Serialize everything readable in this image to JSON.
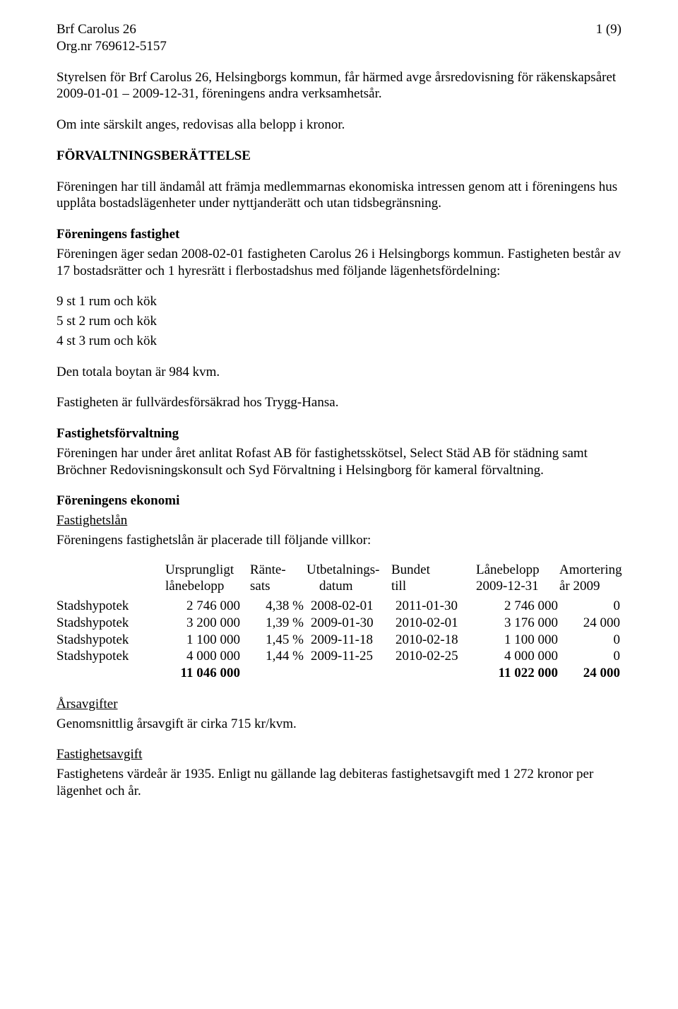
{
  "header": {
    "org_name": "Brf Carolus 26",
    "org_no_label": "Org.nr 769612-5157",
    "page_no": "1 (9)"
  },
  "intro": {
    "p1": "Styrelsen för Brf Carolus 26, Helsingborgs kommun, får härmed avge årsredovisning för räkenskapsåret 2009-01-01 – 2009-12-31, föreningens andra verksamhetsår.",
    "p2": "Om inte särskilt anges, redovisas alla belopp i kronor."
  },
  "forvaltning": {
    "title": "FÖRVALTNINGSBERÄTTELSE",
    "p1": "Föreningen har till ändamål att främja medlemmarnas ekonomiska intressen genom att i föreningens hus upplåta bostadslägenheter under nyttjanderätt och utan tidsbegränsning."
  },
  "fastighet": {
    "title": "Föreningens fastighet",
    "p1": "Föreningen äger sedan 2008-02-01 fastigheten Carolus 26 i Helsingborgs kommun. Fastigheten består av 17 bostadsrätter och 1 hyresrätt i flerbostadshus med följande lägenhetsfördelning:",
    "rooms": {
      "r1": "9 st 1 rum och kök",
      "r2": "5 st 2 rum och kök",
      "r3": "4 st 3 rum och kök"
    },
    "area": "Den totala boytan är 984 kvm.",
    "insurance": "Fastigheten är fullvärdesförsäkrad hos Trygg-Hansa."
  },
  "forvaltning2": {
    "title": "Fastighetsförvaltning",
    "p1": "Föreningen har under året anlitat Rofast AB för fastighetsskötsel, Select Städ AB för städning samt Bröchner Redovisningskonsult och Syd Förvaltning i Helsingborg för kameral förvaltning."
  },
  "ekonomi": {
    "title": "Föreningens ekonomi",
    "sub_loans": "Fastighetslån",
    "loans_intro": "Föreningens fastighetslån är placerade till följande villkor:"
  },
  "loan_table": {
    "headers": {
      "orig1": "Ursprungligt",
      "orig2": "lånebelopp",
      "rate1": "Ränte-",
      "rate2": "sats",
      "date1": "Utbetalnings-",
      "date2": "datum",
      "bound1": "Bundet",
      "bound2": "till",
      "bal1": "Lånebelopp",
      "bal2": "2009-12-31",
      "amort1": "Amortering",
      "amort2": "år 2009"
    },
    "rows": [
      {
        "lender": "Stadshypotek",
        "orig": "2 746 000",
        "rate": "4,38 %",
        "date": "2008-02-01",
        "bound": "2011-01-30",
        "bal": "2 746 000",
        "amort": "0"
      },
      {
        "lender": "Stadshypotek",
        "orig": "3 200 000",
        "rate": "1,39 %",
        "date": "2009-01-30",
        "bound": "2010-02-01",
        "bal": "3 176 000",
        "amort": "24 000"
      },
      {
        "lender": "Stadshypotek",
        "orig": "1 100 000",
        "rate": "1,45 %",
        "date": "2009-11-18",
        "bound": "2010-02-18",
        "bal": "1 100 000",
        "amort": "0"
      },
      {
        "lender": "Stadshypotek",
        "orig": "4 000 000",
        "rate": "1,44 %",
        "date": "2009-11-25",
        "bound": "2010-02-25",
        "bal": "4 000 000",
        "amort": "0"
      }
    ],
    "totals": {
      "orig": "11 046 000",
      "bal": "11 022 000",
      "amort": "24 000"
    }
  },
  "arsavg": {
    "title": "Årsavgifter",
    "p1": "Genomsnittlig årsavgift är cirka 715 kr/kvm."
  },
  "fastavg": {
    "title": "Fastighetsavgift",
    "p1": "Fastighetens värdeår är 1935. Enligt nu gällande lag debiteras fastighetsavgift med 1 272 kronor per lägenhet och år."
  }
}
